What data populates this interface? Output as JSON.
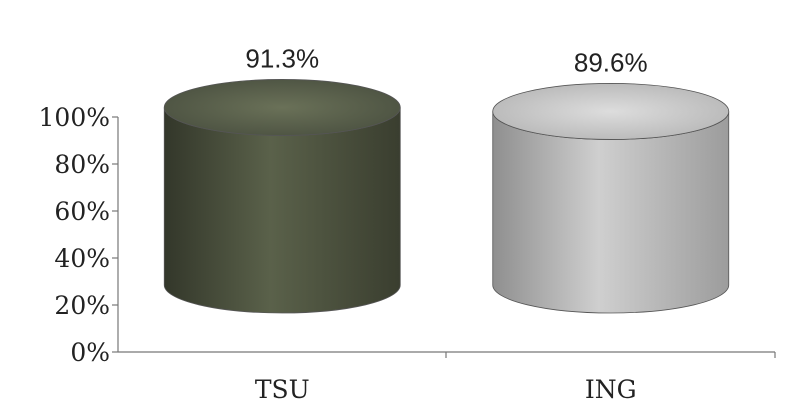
{
  "chart_data": {
    "type": "bar",
    "style": "3d-cylinder",
    "categories": [
      "TSU",
      "ING"
    ],
    "values": [
      91.3,
      89.6
    ],
    "data_labels": [
      "91.3%",
      "89.6%"
    ],
    "y_ticks": [
      "0%",
      "20%",
      "40%",
      "60%",
      "80%",
      "100%"
    ],
    "ylim": [
      0,
      100
    ],
    "title": "",
    "xlabel": "",
    "ylabel": "",
    "grid": false,
    "legend": "none",
    "colors": [
      "#4f5541",
      "#bfbfbf"
    ]
  }
}
